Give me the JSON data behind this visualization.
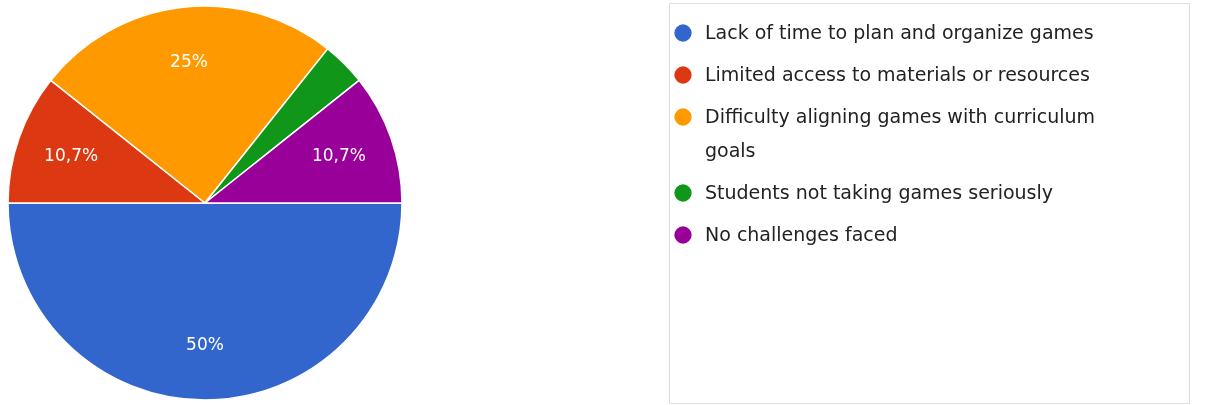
{
  "chart_data": {
    "type": "pie",
    "categories": [
      "Lack of time to plan and organize games",
      "Limited access to materials or resources",
      "Difficulty aligning games with curriculum goals",
      "Students not taking games seriously",
      "No challenges faced"
    ],
    "values": [
      50,
      10.7,
      25,
      3.6,
      10.7
    ],
    "colors": [
      "#3366cc",
      "#dc3912",
      "#ff9900",
      "#109618",
      "#990099"
    ],
    "value_labels": [
      "50%",
      "10,7%",
      "25%",
      null,
      "10,7%"
    ],
    "legend": "top right"
  }
}
